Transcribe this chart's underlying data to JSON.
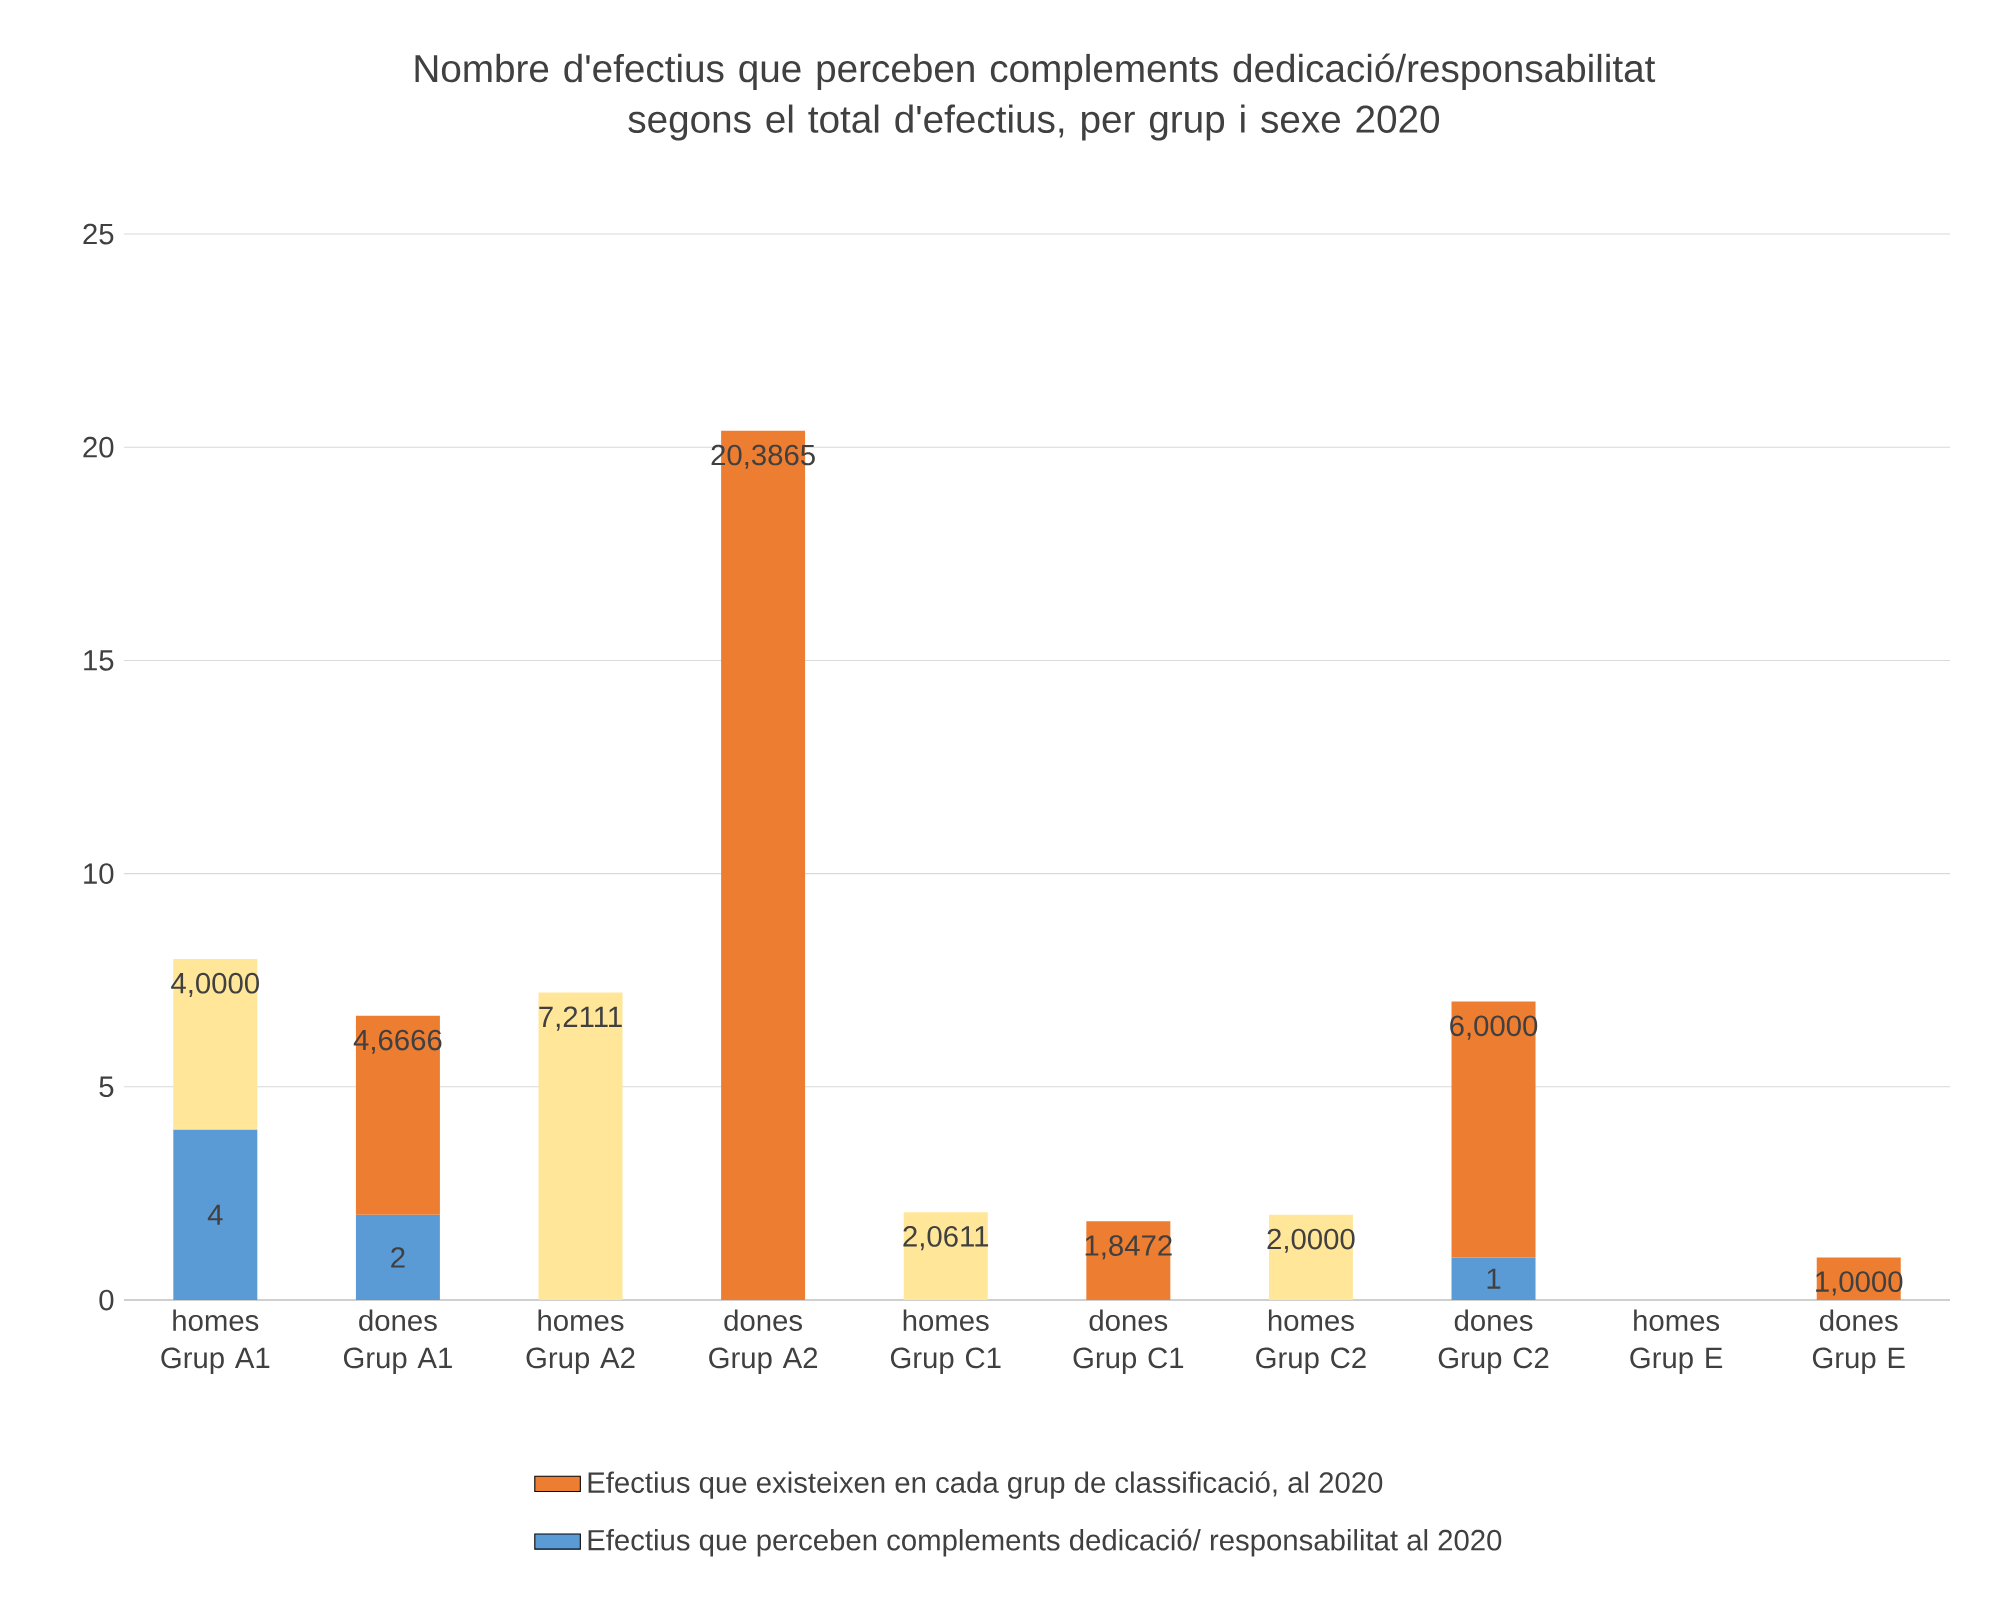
{
  "chart_data": {
    "type": "bar",
    "stacked": true,
    "title": "Nombre d'efectius que perceben complements dedicació/responsabilitat segons el total d'efectius, per grup i sexe 2020",
    "categories": [
      "homes Grup A1",
      "dones Grup A1",
      "homes Grup A2",
      "dones Grup A2",
      "homes Grup C1",
      "dones Grup C1",
      "homes Grup C2",
      "dones Grup C2",
      "homes Grup E",
      "dones Grup E"
    ],
    "series": [
      {
        "name": "Efectius que perceben complements dedicació/ responsabilitat al 2020",
        "color": "#5b9bd5",
        "values": [
          4,
          2,
          null,
          null,
          null,
          null,
          null,
          1,
          null,
          null
        ],
        "value_labels": [
          "4",
          "2",
          null,
          null,
          null,
          null,
          null,
          "1",
          null,
          null
        ]
      },
      {
        "name": "Efectius que existeixen en cada grup de classificació, al 2020",
        "color": "#ed7d31",
        "colors": [
          "#ffe699",
          "#ed7d31",
          "#ffe699",
          "#ed7d31",
          "#ffe699",
          "#ed7d31",
          "#ffe699",
          "#ed7d31",
          "#ffe699",
          "#ed7d31"
        ],
        "values": [
          4,
          4.6666,
          7.2111,
          20.3865,
          2.0611,
          1.8472,
          2,
          6,
          null,
          1
        ],
        "value_labels": [
          "4,0000",
          "4,6666",
          "7,2111",
          "20,3865",
          "2,0611",
          "1,8472",
          "2,0000",
          "6,0000",
          null,
          "1,0000"
        ]
      }
    ],
    "ylim": [
      0,
      25
    ],
    "yticks": [
      0,
      5,
      10,
      15,
      20,
      25
    ],
    "grid": "y",
    "legend": "bottom"
  }
}
